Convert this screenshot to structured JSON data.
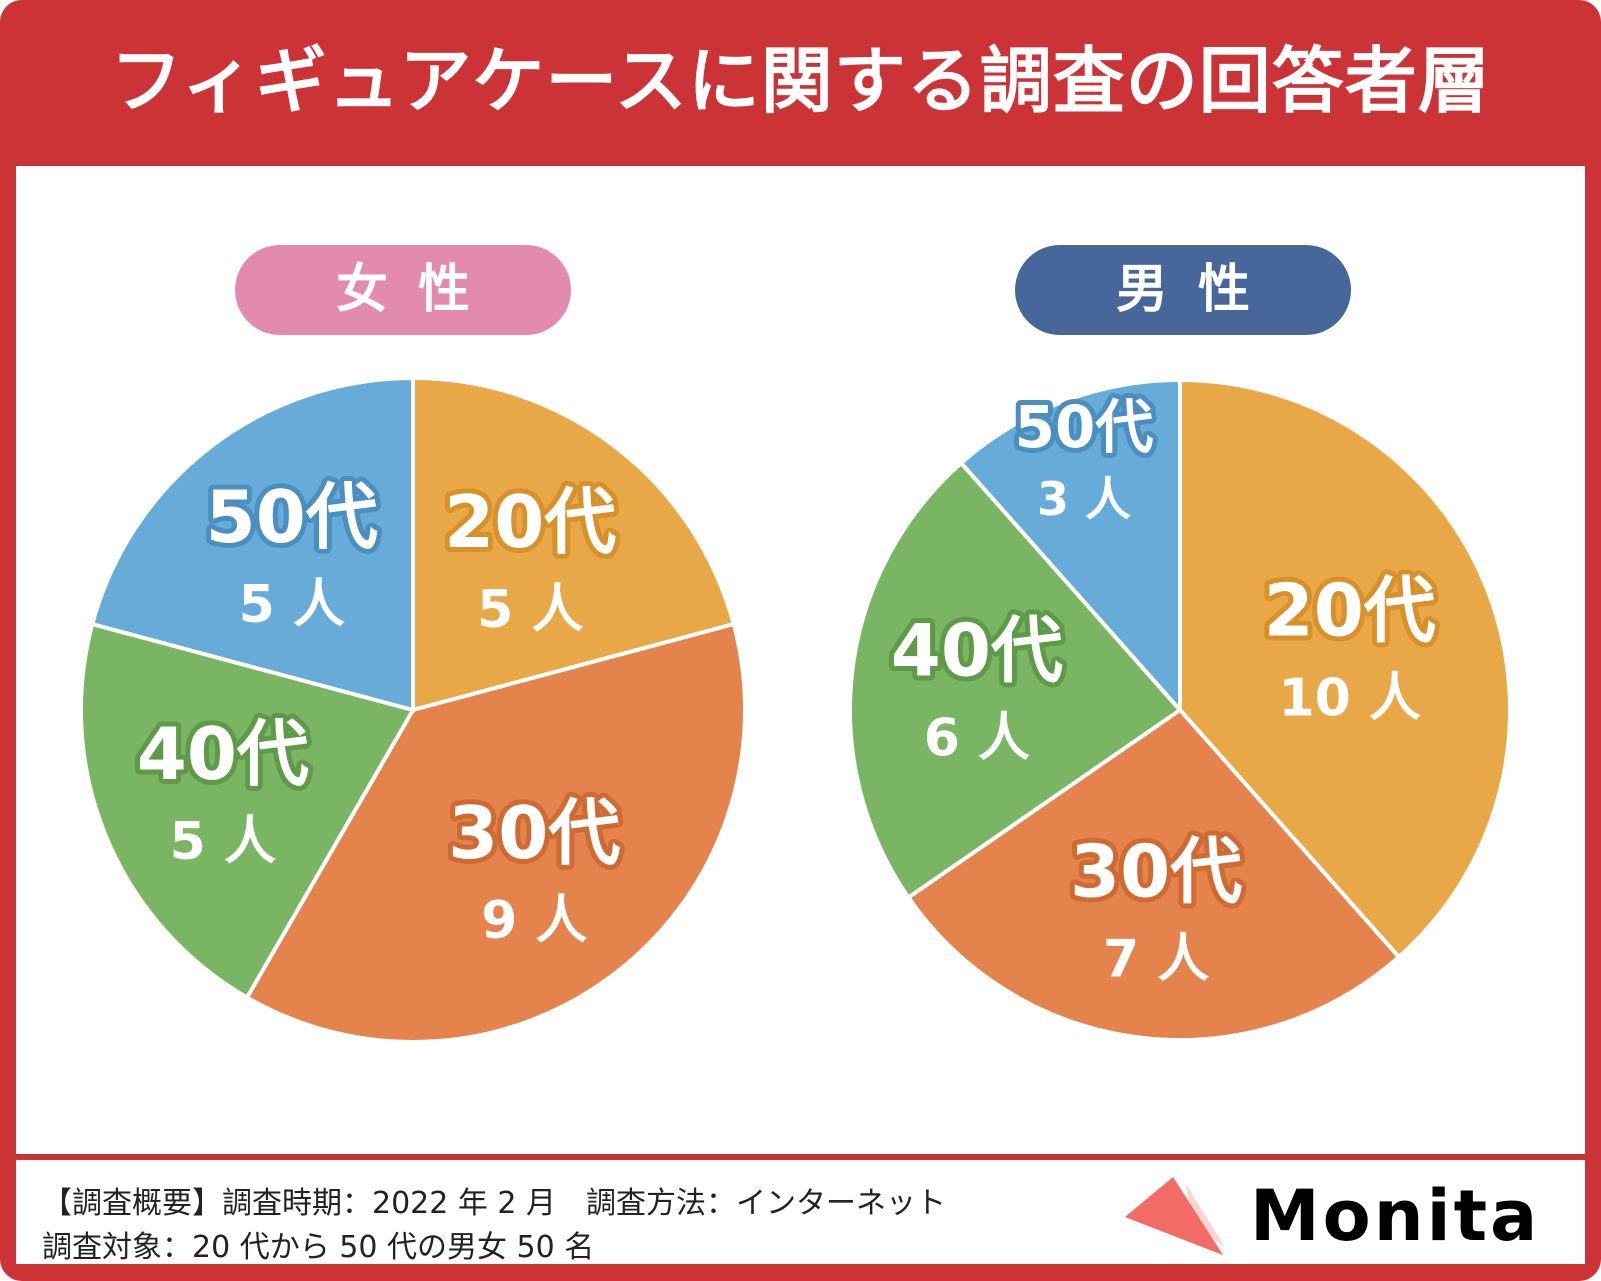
{
  "title": "フィギュアケースに関する調査の回答者層",
  "chart_data": [
    {
      "type": "pie",
      "title": "女性",
      "unit": "人",
      "categories": [
        "20代",
        "30代",
        "40代",
        "50代"
      ],
      "values": [
        5,
        9,
        5,
        5
      ],
      "colors": [
        "#E9A847",
        "#E4834B",
        "#79B562",
        "#67ACD9"
      ],
      "start": "top",
      "direction": "clockwise"
    },
    {
      "type": "pie",
      "title": "男性",
      "unit": "人",
      "categories": [
        "20代",
        "30代",
        "40代",
        "50代"
      ],
      "values": [
        10,
        7,
        6,
        3
      ],
      "colors": [
        "#E9A847",
        "#E4834B",
        "#79B562",
        "#67ACD9"
      ],
      "start": "top",
      "direction": "clockwise"
    }
  ],
  "footer": {
    "line1": "【調査概要】調査時期：2022 年 2 月　調査方法：インターネット",
    "line2": "調査対象：20 代から 50 代の男女 50 名"
  },
  "logo": {
    "text": "Monita"
  },
  "colors": {
    "frame": "#CC3336",
    "female": "#E38BAE",
    "male": "#476699"
  }
}
